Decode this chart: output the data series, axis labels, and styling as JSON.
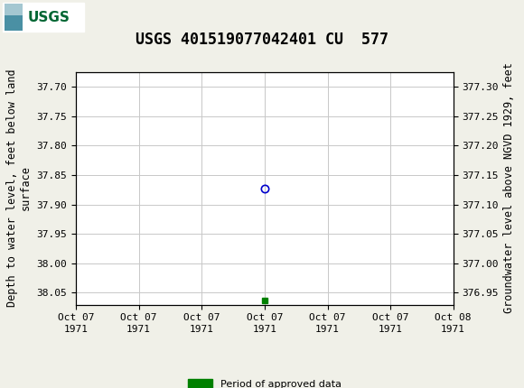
{
  "title": "USGS 401519077042401 CU  577",
  "ylabel_left": "Depth to water level, feet below land\nsurface",
  "ylabel_right": "Groundwater level above NGVD 1929, feet",
  "ylim_left": [
    38.07,
    37.675
  ],
  "ylim_right": [
    376.93,
    377.325
  ],
  "yticks_left": [
    37.7,
    37.75,
    37.8,
    37.85,
    37.9,
    37.95,
    38.0,
    38.05
  ],
  "yticks_right": [
    377.3,
    377.25,
    377.2,
    377.15,
    377.1,
    377.05,
    377.0,
    376.95
  ],
  "xtick_labels": [
    "Oct 07\n1971",
    "Oct 07\n1971",
    "Oct 07\n1971",
    "Oct 07\n1971",
    "Oct 07\n1971",
    "Oct 07\n1971",
    "Oct 08\n1971"
  ],
  "data_point_x": 3.0,
  "data_point_y_depth": 37.873,
  "data_point_marker": "o",
  "data_point_color": "#0000cc",
  "data_point_facecolor": "none",
  "approved_x": 3.0,
  "approved_y_depth": 38.063,
  "approved_color": "#008000",
  "approved_marker": "s",
  "approved_markersize": 4,
  "background_color": "#f0f0e8",
  "plot_bg_color": "#ffffff",
  "grid_color": "#c8c8c8",
  "header_bg_color": "#006633",
  "title_fontsize": 12,
  "axis_label_fontsize": 8.5,
  "tick_fontsize": 8,
  "legend_label": "Period of approved data",
  "num_xticks": 7,
  "xmin": 0,
  "xmax": 6
}
